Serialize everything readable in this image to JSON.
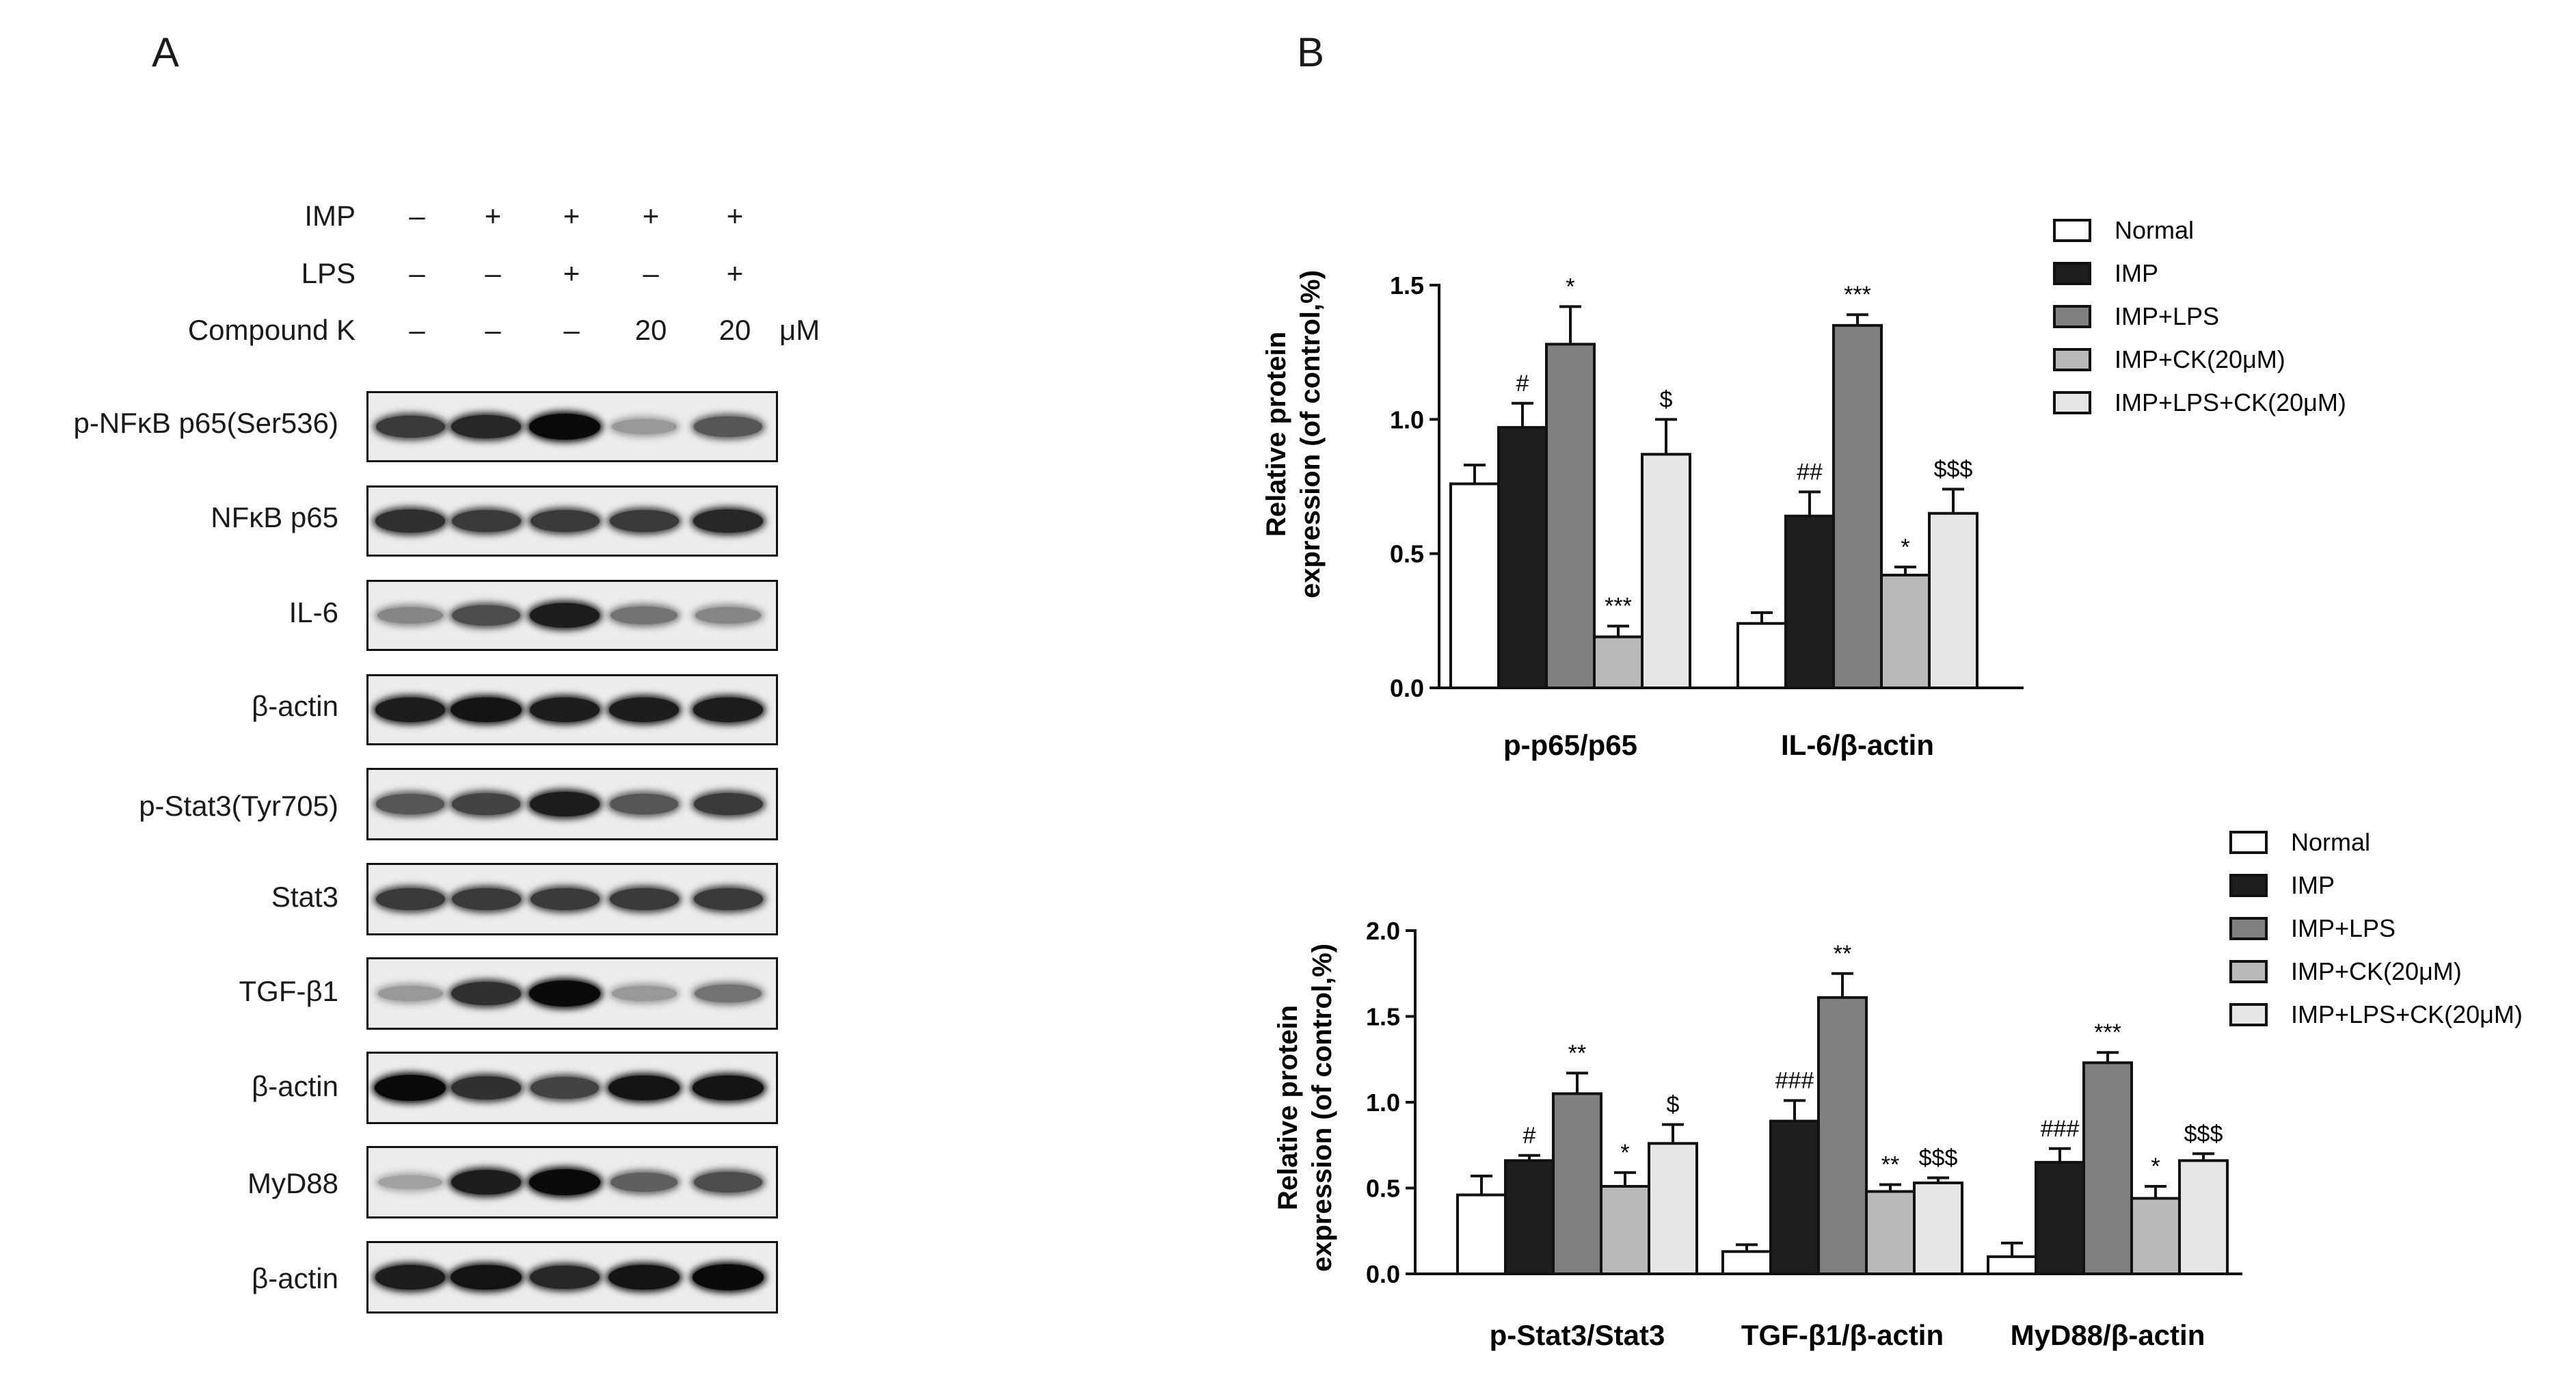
{
  "panel_a": {
    "letter": "A",
    "conditions": [
      {
        "label": "IMP",
        "signs": [
          "–",
          "+",
          "+",
          "+",
          "+"
        ]
      },
      {
        "label": "LPS",
        "signs": [
          "–",
          "–",
          "+",
          "–",
          "+"
        ]
      },
      {
        "label": "Compound K",
        "signs": [
          "–",
          "–",
          "–",
          "20",
          "20"
        ],
        "unit": "μM"
      }
    ],
    "blots": [
      {
        "label": "p-NFκB p65(Ser536)",
        "intensity": [
          0.75,
          0.85,
          1.0,
          0.25,
          0.6
        ]
      },
      {
        "label": "NFκB p65",
        "intensity": [
          0.8,
          0.75,
          0.75,
          0.75,
          0.85
        ]
      },
      {
        "label": "IL-6",
        "intensity": [
          0.35,
          0.65,
          0.9,
          0.45,
          0.35
        ]
      },
      {
        "label": "β-actin",
        "intensity": [
          0.9,
          0.95,
          0.9,
          0.9,
          0.9
        ]
      },
      {
        "label": "p-Stat3(Tyr705)",
        "intensity": [
          0.6,
          0.7,
          0.9,
          0.6,
          0.75
        ]
      },
      {
        "label": "Stat3",
        "intensity": [
          0.75,
          0.75,
          0.75,
          0.75,
          0.75
        ]
      },
      {
        "label": "TGF-β1",
        "intensity": [
          0.25,
          0.8,
          1.0,
          0.25,
          0.45
        ]
      },
      {
        "label": "β-actin",
        "intensity": [
          1.0,
          0.8,
          0.7,
          0.95,
          0.95
        ]
      },
      {
        "label": "MyD88",
        "intensity": [
          0.2,
          0.9,
          1.0,
          0.55,
          0.65
        ]
      },
      {
        "label": "β-actin",
        "intensity": [
          0.9,
          0.95,
          0.85,
          0.95,
          1.0
        ]
      }
    ]
  },
  "panel_b": {
    "letter": "B"
  },
  "legend_items": [
    "Normal",
    "IMP",
    "IMP+LPS",
    "IMP+CK(20μM)",
    "IMP+LPS+CK(20μM)"
  ],
  "series_colors": [
    "#ffffff",
    "#1e1e1e",
    "#808080",
    "#b9b9b9",
    "#e6e6e6"
  ],
  "chart_data": [
    {
      "type": "bar",
      "ylabel_line1": "Relative protein",
      "ylabel_line2": "expression (of control,%)",
      "ylim": [
        0,
        1.5
      ],
      "yticks": [
        "0.0",
        "0.5",
        "1.0",
        "1.5"
      ],
      "categories": [
        "p-p65/p65",
        "IL-6/β-actin"
      ],
      "series": [
        {
          "name": "Normal",
          "values": [
            0.76,
            0.24
          ],
          "errors": [
            0.07,
            0.04
          ],
          "marks": [
            "",
            ""
          ]
        },
        {
          "name": "IMP",
          "values": [
            0.97,
            0.64
          ],
          "errors": [
            0.09,
            0.09
          ],
          "marks": [
            "#",
            "##"
          ]
        },
        {
          "name": "IMP+LPS",
          "values": [
            1.28,
            1.35
          ],
          "errors": [
            0.14,
            0.04
          ],
          "marks": [
            "*",
            "***"
          ]
        },
        {
          "name": "IMP+CK(20μM)",
          "values": [
            0.19,
            0.42
          ],
          "errors": [
            0.04,
            0.03
          ],
          "marks": [
            "***",
            "*"
          ]
        },
        {
          "name": "IMP+LPS+CK(20μM)",
          "values": [
            0.87,
            0.65
          ],
          "errors": [
            0.13,
            0.09
          ],
          "marks": [
            "$",
            "$$$"
          ]
        }
      ]
    },
    {
      "type": "bar",
      "ylabel_line1": "Relative protein",
      "ylabel_line2": "expression (of control,%)",
      "ylim": [
        0,
        2.0
      ],
      "yticks": [
        "0.0",
        "0.5",
        "1.0",
        "1.5",
        "2.0"
      ],
      "categories": [
        "p-Stat3/Stat3",
        "TGF-β1/β-actin",
        "MyD88/β-actin"
      ],
      "series": [
        {
          "name": "Normal",
          "values": [
            0.46,
            0.13,
            0.1
          ],
          "errors": [
            0.11,
            0.04,
            0.08
          ],
          "marks": [
            "",
            "",
            ""
          ]
        },
        {
          "name": "IMP",
          "values": [
            0.66,
            0.89,
            0.65
          ],
          "errors": [
            0.03,
            0.12,
            0.08
          ],
          "marks": [
            "#",
            "###",
            "###"
          ]
        },
        {
          "name": "IMP+LPS",
          "values": [
            1.05,
            1.61,
            1.23
          ],
          "errors": [
            0.12,
            0.14,
            0.06
          ],
          "marks": [
            "**",
            "**",
            "***"
          ]
        },
        {
          "name": "IMP+CK(20μM)",
          "values": [
            0.51,
            0.48,
            0.44
          ],
          "errors": [
            0.08,
            0.04,
            0.07
          ],
          "marks": [
            "*",
            "**",
            "*"
          ]
        },
        {
          "name": "IMP+LPS+CK(20μM)",
          "values": [
            0.76,
            0.53,
            0.66
          ],
          "errors": [
            0.11,
            0.03,
            0.04
          ],
          "marks": [
            "$",
            "$$$",
            "$$$"
          ]
        }
      ]
    }
  ]
}
